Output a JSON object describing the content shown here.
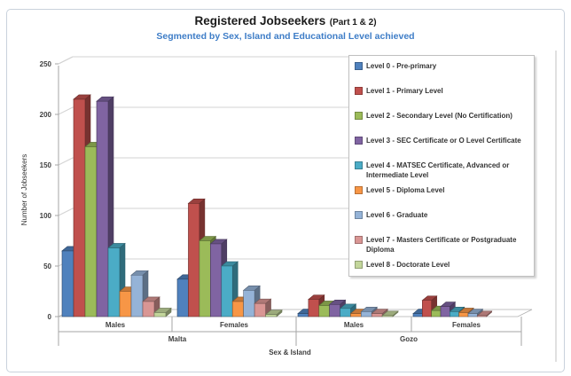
{
  "title": {
    "main": "Registered Jobseekers",
    "part": "(Part 1 & 2)",
    "subtitle": "Segmented by Sex, Island and Educational Level achieved",
    "subtitle_color": "#3e7dc7"
  },
  "chart_data": {
    "type": "bar",
    "style": "3d-clustered-column",
    "title": "Registered Jobseekers (Part 1 & 2)",
    "subtitle": "Segmented by Sex, Island and Educational Level achieved",
    "xlabel": "Sex & Island",
    "ylabel": "Number of Jobseekers",
    "ylim": [
      0,
      250
    ],
    "yticks": [
      0,
      50,
      100,
      150,
      200,
      250
    ],
    "grid": true,
    "legend_position": "right",
    "categories": [
      {
        "island": "Malta",
        "sex": "Males"
      },
      {
        "island": "Malta",
        "sex": "Females"
      },
      {
        "island": "Gozo",
        "sex": "Males"
      },
      {
        "island": "Gozo",
        "sex": "Females"
      }
    ],
    "category_tier1": [
      "Males",
      "Females",
      "Males",
      "Females"
    ],
    "category_tier2": [
      "Malta",
      "Gozo"
    ],
    "series": [
      {
        "name": "Level 0 - Pre-primary",
        "color": "#4F81BD",
        "values": [
          65,
          37,
          3,
          3
        ]
      },
      {
        "name": "Level 1 - Primary Level",
        "color": "#C0504D",
        "values": [
          215,
          112,
          17,
          16
        ]
      },
      {
        "name": "Level 2 - Secondary Level (No Certification)",
        "color": "#9BBB59",
        "values": [
          168,
          75,
          11,
          6
        ]
      },
      {
        "name": "Level 3 - SEC Certificate or O Level Certificate",
        "color": "#8064A2",
        "values": [
          213,
          72,
          12,
          10
        ]
      },
      {
        "name": "Level 4 - MATSEC Certificate, Advanced or Intermediate Level",
        "color": "#4BACC6",
        "values": [
          68,
          50,
          8,
          5
        ]
      },
      {
        "name": "Level 5 - Diploma Level",
        "color": "#F79646",
        "values": [
          25,
          15,
          3,
          4
        ]
      },
      {
        "name": "Level 6 - Graduate",
        "color": "#95B3D7",
        "values": [
          41,
          26,
          5,
          3
        ]
      },
      {
        "name": "Level 7 - Masters Certificate or Postgraduate Diploma",
        "color": "#D99694",
        "values": [
          15,
          13,
          3,
          1
        ]
      },
      {
        "name": "Level 8 - Doctorate Level",
        "color": "#C3D69B",
        "values": [
          4,
          2,
          1,
          0
        ]
      }
    ]
  }
}
